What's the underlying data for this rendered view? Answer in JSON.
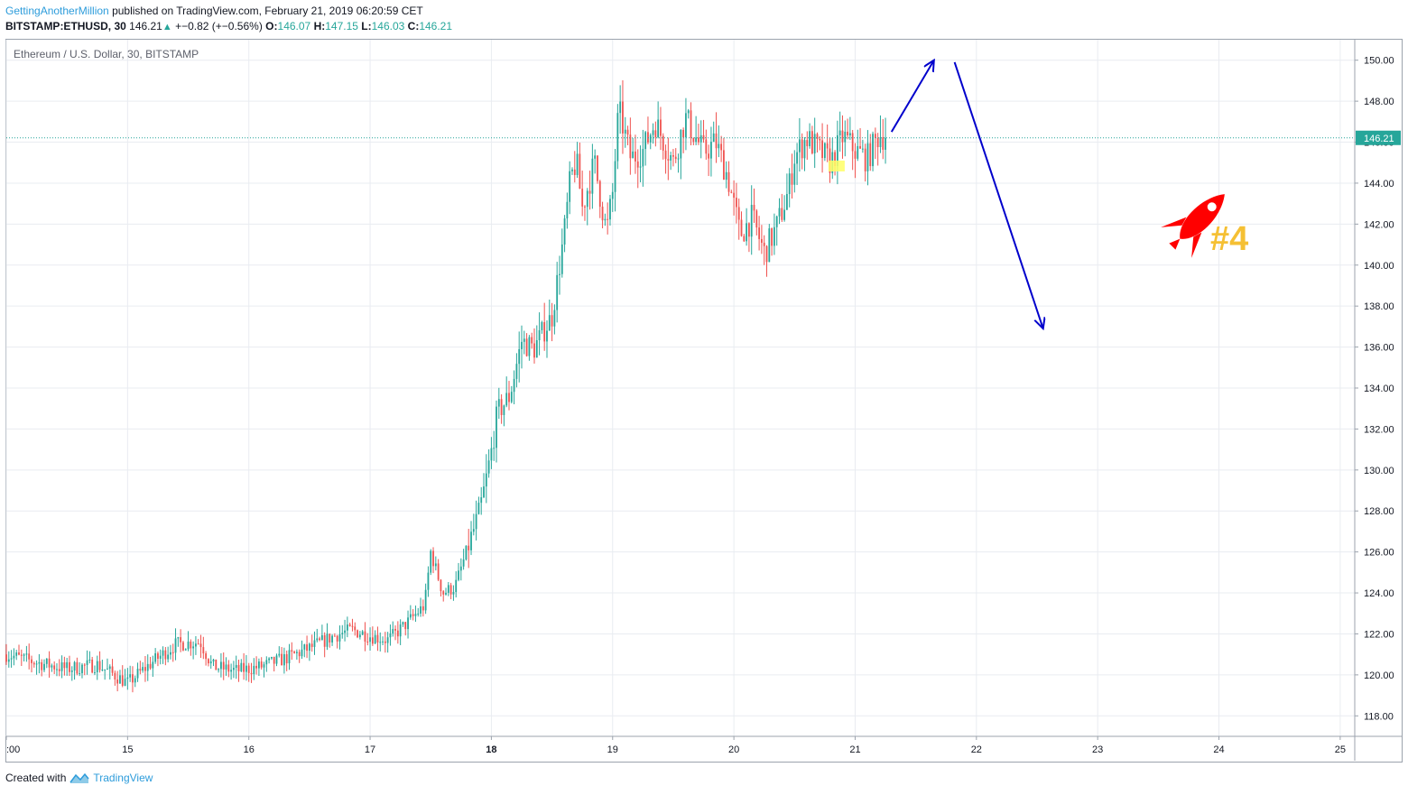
{
  "header": {
    "author": "GettingAnotherMillion",
    "published": "published on TradingView.com, February 21, 2019 06:20:59 CET",
    "symbol": "BITSTAMP:ETHUSD, 30",
    "last": "146.21",
    "arrow": "▲",
    "change": "+−0.82 (+−0.56%)",
    "o_label": "O:",
    "o_value": "146.07",
    "h_label": "H:",
    "h_value": "147.15",
    "l_label": "L:",
    "l_value": "146.03",
    "c_label": "C:",
    "c_value": "146.21"
  },
  "chart_title": "Ethereum / U.S. Dollar, 30, BITSTAMP",
  "footer": {
    "created": "Created with",
    "brand": "TradingView"
  },
  "annotation": {
    "label": "#4",
    "icon": "rocket-icon"
  },
  "colors": {
    "up": "#26a69a",
    "down": "#ef5350",
    "arrow": "#0000cc",
    "price_line": "#26a69a",
    "rocket": "#ff0000",
    "label": "#f5c034",
    "highlight": "#ffff66"
  },
  "chart_data": {
    "type": "candlestick",
    "title": "Ethereum / U.S. Dollar, 30, BITSTAMP",
    "ylim": [
      117,
      151
    ],
    "y_ticks": [
      "150.00",
      "148.00",
      "146.00",
      "144.00",
      "142.00",
      "140.00",
      "138.00",
      "136.00",
      "134.00",
      "132.00",
      "130.00",
      "128.00",
      "126.00",
      "124.00",
      "122.00",
      "120.00",
      "118.00"
    ],
    "x_ticks": [
      {
        "label": ":00",
        "day": 14.0
      },
      {
        "label": "15",
        "day": 15
      },
      {
        "label": "16",
        "day": 16
      },
      {
        "label": "17",
        "day": 17
      },
      {
        "label": "18",
        "day": 18,
        "bold": true
      },
      {
        "label": "19",
        "day": 19
      },
      {
        "label": "20",
        "day": 20
      },
      {
        "label": "21",
        "day": 21
      },
      {
        "label": "22",
        "day": 22
      },
      {
        "label": "23",
        "day": 23
      },
      {
        "label": "24",
        "day": 24
      },
      {
        "label": "25",
        "day": 25
      }
    ],
    "x_range": [
      14.0,
      25.12
    ],
    "last_price": 146.21,
    "price_path": [
      [
        14.0,
        121.0
      ],
      [
        14.25,
        120.6
      ],
      [
        14.5,
        120.3
      ],
      [
        14.75,
        120.5
      ],
      [
        15.0,
        119.6
      ],
      [
        15.2,
        120.6
      ],
      [
        15.4,
        121.5
      ],
      [
        15.6,
        121.6
      ],
      [
        15.7,
        120.4
      ],
      [
        15.9,
        120.2
      ],
      [
        16.1,
        120.4
      ],
      [
        16.3,
        120.8
      ],
      [
        16.5,
        121.3
      ],
      [
        16.7,
        121.9
      ],
      [
        16.85,
        122.2
      ],
      [
        17.0,
        121.9
      ],
      [
        17.15,
        121.7
      ],
      [
        17.3,
        122.5
      ],
      [
        17.45,
        123.4
      ],
      [
        17.5,
        126.0
      ],
      [
        17.6,
        124.0
      ],
      [
        17.7,
        124.3
      ],
      [
        17.8,
        126.1
      ],
      [
        17.9,
        127.9
      ],
      [
        17.95,
        129.3
      ],
      [
        18.0,
        130.9
      ],
      [
        18.05,
        132.8
      ],
      [
        18.15,
        133.6
      ],
      [
        18.25,
        136.3
      ],
      [
        18.35,
        135.9
      ],
      [
        18.45,
        137.0
      ],
      [
        18.5,
        137.5
      ],
      [
        18.6,
        141.5
      ],
      [
        18.65,
        144.1
      ],
      [
        18.7,
        145.1
      ],
      [
        18.75,
        142.8
      ],
      [
        18.85,
        145.0
      ],
      [
        18.95,
        141.6
      ],
      [
        19.0,
        143.5
      ],
      [
        19.05,
        147.6
      ],
      [
        19.15,
        145.2
      ],
      [
        19.25,
        145.6
      ],
      [
        19.35,
        147.0
      ],
      [
        19.5,
        145.0
      ],
      [
        19.6,
        147.2
      ],
      [
        19.75,
        145.5
      ],
      [
        19.85,
        146.0
      ],
      [
        19.95,
        144.3
      ],
      [
        20.05,
        141.5
      ],
      [
        20.15,
        142.3
      ],
      [
        20.25,
        140.6
      ],
      [
        20.35,
        141.8
      ],
      [
        20.45,
        143.6
      ],
      [
        20.5,
        145.3
      ],
      [
        20.6,
        146.2
      ],
      [
        20.7,
        145.6
      ],
      [
        20.8,
        145.0
      ],
      [
        20.9,
        146.3
      ],
      [
        21.0,
        145.6
      ],
      [
        21.1,
        145.2
      ],
      [
        21.2,
        146.4
      ],
      [
        21.25,
        146.21
      ]
    ],
    "arrows": [
      {
        "from": [
          21.3,
          146.5
        ],
        "to": [
          21.65,
          150.0
        ]
      },
      {
        "from": [
          21.82,
          149.9
        ],
        "to": [
          22.55,
          136.9
        ]
      }
    ]
  }
}
